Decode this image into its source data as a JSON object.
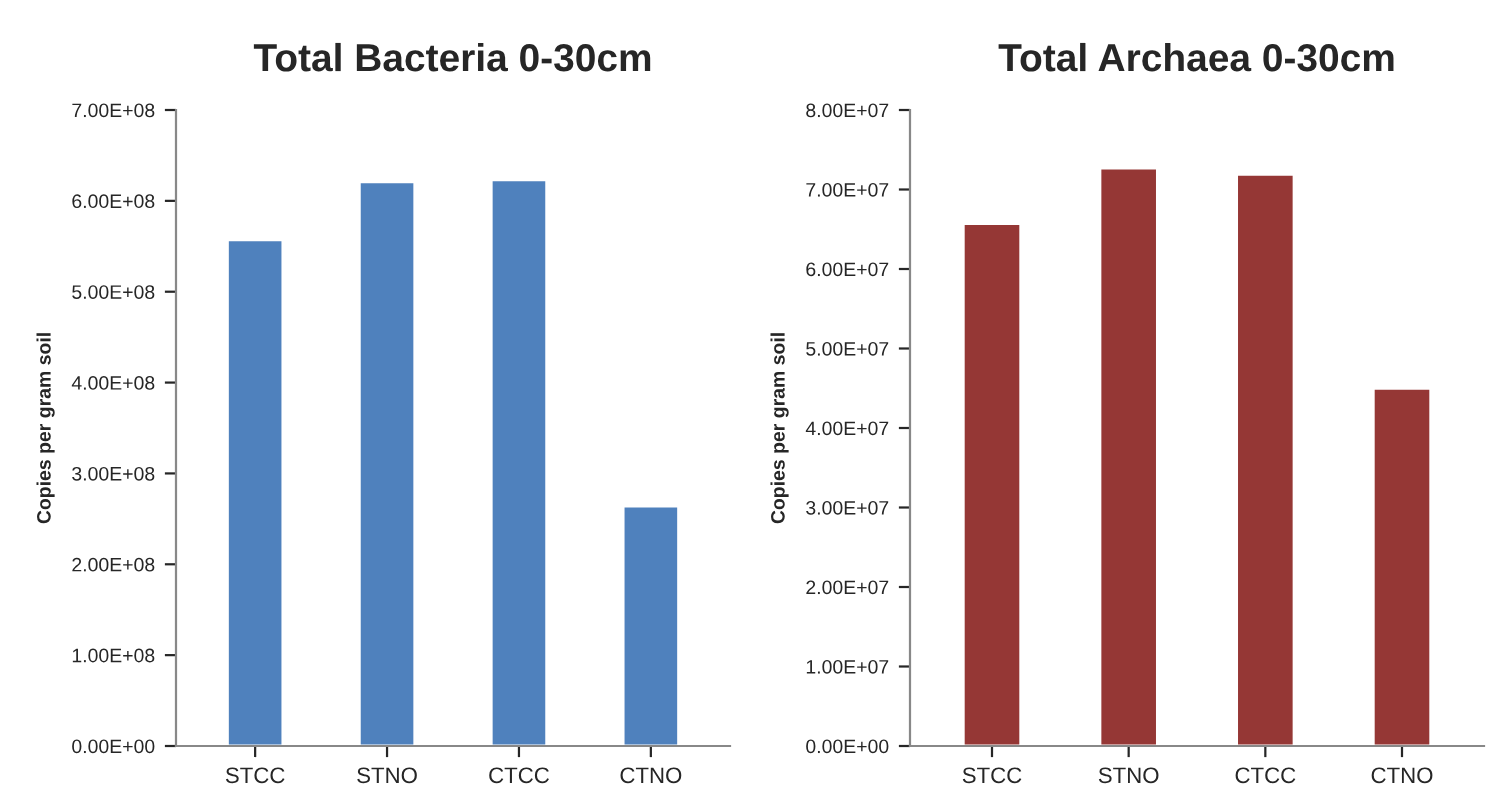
{
  "chart_data": [
    {
      "type": "bar",
      "title": "Total Bacteria 0-30cm",
      "ylabel": "Copies per gram soil",
      "categories": [
        "STCC",
        "STNO",
        "CTCC",
        "CTNO"
      ],
      "values": [
        557000000.0,
        621000000.0,
        623000000.0,
        264000000.0
      ],
      "color": "#4f81bd",
      "ylim": [
        0,
        700000000.0
      ],
      "yticks": [
        {
          "value": 0,
          "label": "0.00E+00"
        },
        {
          "value": 100000000.0,
          "label": "1.00E+08"
        },
        {
          "value": 200000000.0,
          "label": "2.00E+08"
        },
        {
          "value": 300000000.0,
          "label": "3.00E+08"
        },
        {
          "value": 400000000.0,
          "label": "4.00E+08"
        },
        {
          "value": 500000000.0,
          "label": "5.00E+08"
        },
        {
          "value": 600000000.0,
          "label": "6.00E+08"
        },
        {
          "value": 700000000.0,
          "label": "7.00E+08"
        }
      ]
    },
    {
      "type": "bar",
      "title": "Total Archaea 0-30cm",
      "ylabel": "Copies per gram soil",
      "categories": [
        "STCC",
        "STNO",
        "CTCC",
        "CTNO"
      ],
      "values": [
        65700000.0,
        72700000.0,
        71900000.0,
        45000000.0
      ],
      "color": "#953735",
      "ylim": [
        0,
        80000000.0
      ],
      "yticks": [
        {
          "value": 0,
          "label": "0.00E+00"
        },
        {
          "value": 10000000.0,
          "label": "1.00E+07"
        },
        {
          "value": 20000000.0,
          "label": "2.00E+07"
        },
        {
          "value": 30000000.0,
          "label": "3.00E+07"
        },
        {
          "value": 40000000.0,
          "label": "4.00E+07"
        },
        {
          "value": 50000000.0,
          "label": "5.00E+07"
        },
        {
          "value": 60000000.0,
          "label": "6.00E+07"
        },
        {
          "value": 70000000.0,
          "label": "7.00E+07"
        },
        {
          "value": 80000000.0,
          "label": "8.00E+07"
        }
      ]
    }
  ]
}
